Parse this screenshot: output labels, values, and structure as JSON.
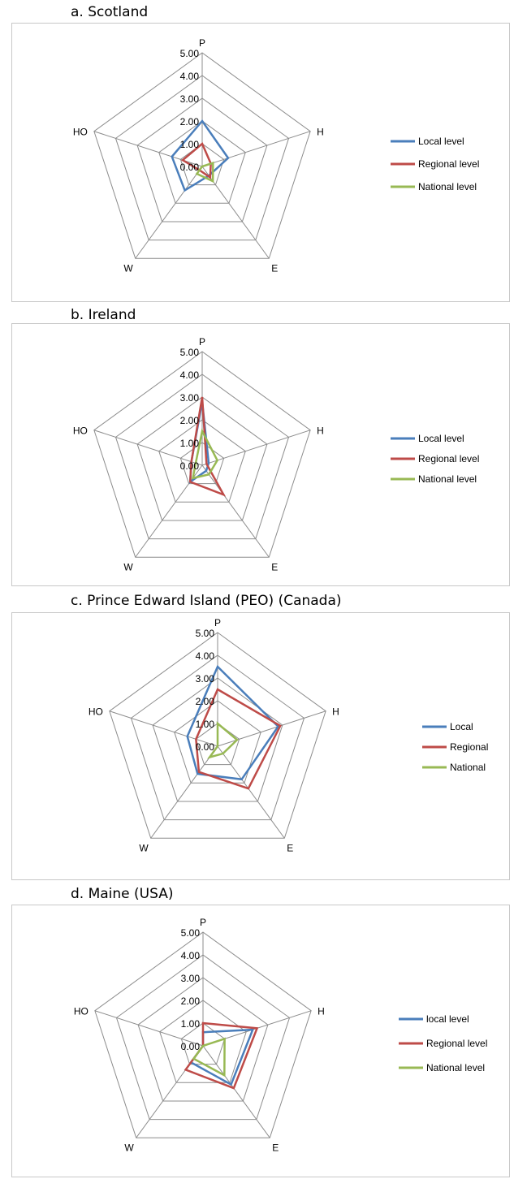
{
  "chart_data": [
    {
      "type": "radar",
      "title": "a. Scotland",
      "axes": [
        "P",
        "H",
        "E",
        "W",
        "HO"
      ],
      "scale": {
        "min": 0,
        "max": 5,
        "step": 1,
        "tick_labels": [
          "0.00",
          "1.00",
          "2.00",
          "3.00",
          "4.00",
          "5.00"
        ]
      },
      "legend_position": "right",
      "series": [
        {
          "name": "Local level",
          "color": "#4a7ebb",
          "values": [
            2.0,
            1.2,
            0.5,
            1.3,
            1.4
          ]
        },
        {
          "name": "Regional level",
          "color": "#be4b48",
          "values": [
            1.0,
            0.4,
            0.6,
            0.2,
            0.9
          ]
        },
        {
          "name": "National level",
          "color": "#98b954",
          "values": [
            0.0,
            0.5,
            0.8,
            0.4,
            0.0
          ]
        }
      ]
    },
    {
      "type": "radar",
      "title": "b. Ireland",
      "axes": [
        "P",
        "H",
        "E",
        "W",
        "HO"
      ],
      "scale": {
        "min": 0,
        "max": 5,
        "step": 1,
        "tick_labels": [
          "0.00",
          "1.00",
          "2.00",
          "3.00",
          "4.00",
          "5.00"
        ]
      },
      "legend_position": "right",
      "series": [
        {
          "name": "Local level",
          "color": "#4a7ebb",
          "values": [
            2.8,
            0.3,
            0.3,
            0.9,
            0.5
          ]
        },
        {
          "name": "Regional level",
          "color": "#be4b48",
          "values": [
            3.0,
            0.2,
            1.6,
            0.9,
            0.5
          ]
        },
        {
          "name": "National level",
          "color": "#98b954",
          "values": [
            1.5,
            0.7,
            0.5,
            0.7,
            0.3
          ]
        }
      ]
    },
    {
      "type": "radar",
      "title": "c. Prince Edward Island (PEO) (Canada)",
      "axes": [
        "P",
        "H",
        "E",
        "W",
        "HO"
      ],
      "scale": {
        "min": 0,
        "max": 5,
        "step": 1,
        "tick_labels": [
          "0.00",
          "1.00",
          "2.00",
          "3.00",
          "4.00",
          "5.00"
        ]
      },
      "legend_position": "right",
      "series": [
        {
          "name": "Local",
          "color": "#4a7ebb",
          "values": [
            3.5,
            2.8,
            1.8,
            1.5,
            1.4
          ]
        },
        {
          "name": "Regional",
          "color": "#be4b48",
          "values": [
            2.5,
            2.9,
            2.3,
            1.4,
            1.0
          ]
        },
        {
          "name": "National",
          "color": "#98b954",
          "values": [
            1.0,
            0.9,
            0.4,
            0.6,
            0.0
          ]
        }
      ]
    },
    {
      "type": "radar",
      "title": "d. Maine (USA)",
      "axes": [
        "P",
        "H",
        "E",
        "W",
        "HO"
      ],
      "scale": {
        "min": 0,
        "max": 5,
        "step": 1,
        "tick_labels": [
          "0.00",
          "1.00",
          "2.00",
          "3.00",
          "4.00",
          "5.00"
        ]
      },
      "legend_position": "right",
      "series": [
        {
          "name": "local level",
          "color": "#4a7ebb",
          "values": [
            0.6,
            2.3,
            2.1,
            0.9,
            0.0
          ]
        },
        {
          "name": "Regional level",
          "color": "#be4b48",
          "values": [
            1.0,
            2.5,
            2.3,
            1.3,
            0.0
          ]
        },
        {
          "name": "National level",
          "color": "#98b954",
          "values": [
            0.0,
            1.0,
            1.6,
            0.7,
            0.0
          ]
        }
      ]
    }
  ]
}
